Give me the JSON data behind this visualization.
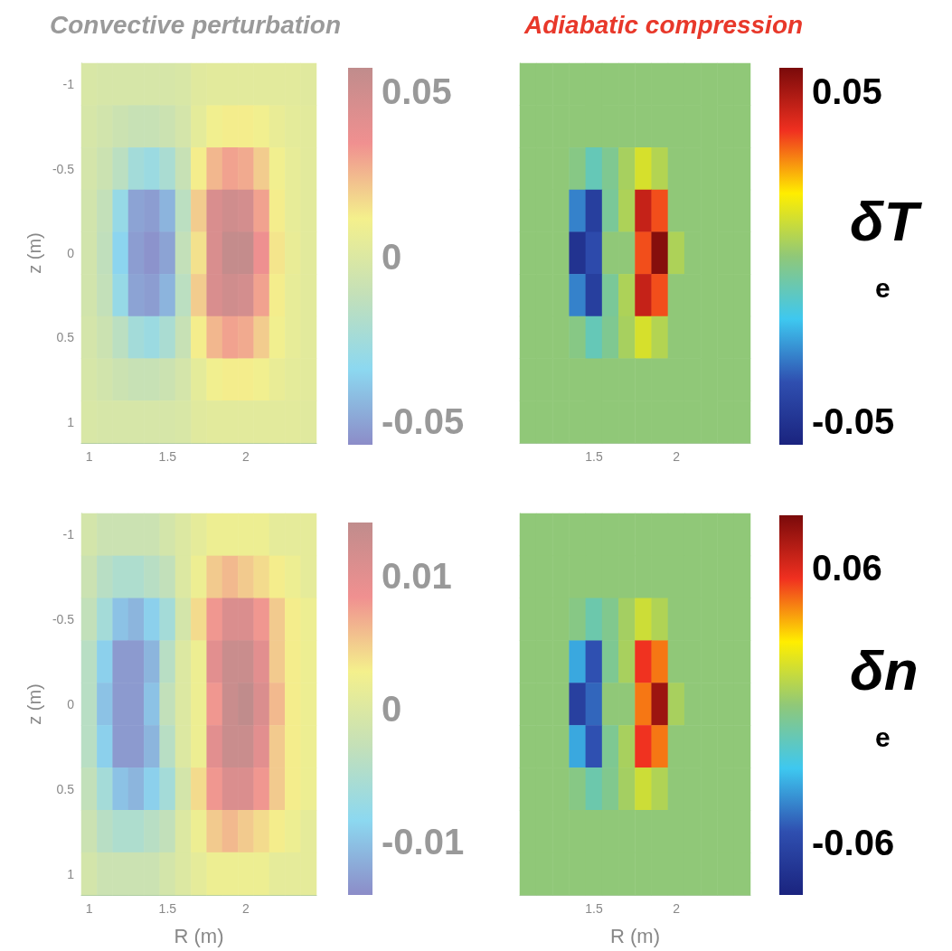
{
  "chart_data": [
    {
      "type": "heatmap",
      "title": "Convective perturbation",
      "ylabel": "z (m)",
      "categories": [
        "1",
        null,
        null,
        null,
        null,
        "1.5",
        null,
        null,
        null,
        null,
        "2",
        null,
        null,
        null,
        null
      ],
      "y_categories": [
        "-1",
        null,
        "-0.5",
        null,
        "0",
        null,
        "0.5",
        null,
        "1"
      ],
      "cells": [
        [
          -0.002,
          -0.003,
          -0.003,
          -0.003,
          -0.003,
          -0.003,
          -0.002,
          0.002,
          0.003,
          0.003,
          0.003,
          0.003,
          0.003,
          0.003,
          0.002
        ],
        [
          -0.003,
          -0.005,
          -0.008,
          -0.01,
          -0.01,
          -0.008,
          -0.004,
          0.004,
          0.01,
          0.012,
          0.012,
          0.01,
          0.006,
          0.004,
          0.003
        ],
        [
          -0.004,
          -0.008,
          -0.015,
          -0.025,
          -0.028,
          -0.022,
          -0.01,
          0.012,
          0.025,
          0.03,
          0.028,
          0.02,
          0.01,
          0.005,
          0.003
        ],
        [
          -0.005,
          -0.012,
          -0.03,
          -0.05,
          -0.052,
          -0.045,
          -0.015,
          0.02,
          0.045,
          0.05,
          0.048,
          0.03,
          0.012,
          0.005,
          0.003
        ],
        [
          -0.005,
          -0.013,
          -0.035,
          -0.052,
          -0.055,
          -0.05,
          -0.012,
          0.015,
          0.045,
          0.055,
          0.055,
          0.035,
          0.014,
          0.006,
          0.003
        ],
        [
          -0.005,
          -0.012,
          -0.03,
          -0.05,
          -0.052,
          -0.045,
          -0.015,
          0.02,
          0.045,
          0.05,
          0.048,
          0.03,
          0.012,
          0.005,
          0.003
        ],
        [
          -0.004,
          -0.008,
          -0.015,
          -0.025,
          -0.028,
          -0.022,
          -0.01,
          0.012,
          0.025,
          0.03,
          0.028,
          0.02,
          0.01,
          0.005,
          0.003
        ],
        [
          -0.003,
          -0.005,
          -0.008,
          -0.01,
          -0.01,
          -0.008,
          -0.004,
          0.004,
          0.01,
          0.012,
          0.012,
          0.01,
          0.006,
          0.004,
          0.003
        ],
        [
          -0.002,
          -0.003,
          -0.003,
          -0.003,
          -0.003,
          -0.003,
          -0.002,
          0.002,
          0.003,
          0.003,
          0.003,
          0.003,
          0.003,
          0.003,
          0.002
        ]
      ],
      "clim": [
        -0.057,
        0.057
      ],
      "cticks": [
        -0.05,
        0,
        0.05
      ],
      "colors": [
        "#8c8cc8",
        "#8cd8f0",
        "#c4e0b8",
        "#f4f08c",
        "#f09090",
        "#c08c8c"
      ]
    },
    {
      "type": "heatmap",
      "title": "Adiabatic compression",
      "clabel": "δT$_{e}$",
      "tick_labels": "x",
      "categories": [
        null,
        null,
        null,
        null,
        "1.5",
        null,
        null,
        null,
        null,
        "2",
        null,
        null,
        null,
        null
      ],
      "y_categories": [
        null,
        null,
        null,
        null,
        null,
        null,
        null,
        null,
        null
      ],
      "cells": [
        [
          0,
          0,
          0,
          0,
          0,
          0,
          0,
          0,
          0,
          0,
          0,
          0,
          0,
          0
        ],
        [
          0,
          0,
          0,
          0,
          0,
          0,
          0,
          0,
          0,
          0,
          0,
          0,
          0,
          0
        ],
        [
          0,
          0,
          0,
          -0.002,
          -0.01,
          -0.004,
          0.004,
          0.012,
          0.006,
          0,
          0,
          0,
          0,
          0
        ],
        [
          0,
          0,
          0,
          -0.03,
          -0.045,
          -0.005,
          0.005,
          0.045,
          0.035,
          0,
          0,
          0,
          0,
          0
        ],
        [
          0,
          0,
          0,
          -0.05,
          -0.04,
          0,
          0,
          0.035,
          0.055,
          0.005,
          0,
          0,
          0,
          0
        ],
        [
          0,
          0,
          0,
          -0.03,
          -0.045,
          -0.005,
          0.005,
          0.045,
          0.035,
          0,
          0,
          0,
          0,
          0
        ],
        [
          0,
          0,
          0,
          -0.002,
          -0.01,
          -0.004,
          0.004,
          0.012,
          0.006,
          0,
          0,
          0,
          0,
          0
        ],
        [
          0,
          0,
          0,
          0,
          0,
          0,
          0,
          0,
          0,
          0,
          0,
          0,
          0,
          0
        ],
        [
          0,
          0,
          0,
          0,
          0,
          0,
          0,
          0,
          0,
          0,
          0,
          0,
          0,
          0
        ]
      ],
      "clim": [
        -0.057,
        0.057
      ],
      "cticks": [
        -0.05,
        0.05
      ],
      "colors": [
        "#1a237e",
        "#2f4fb0",
        "#3ec8f0",
        "#90c878",
        "#ffee00",
        "#f03020",
        "#7a0a0a"
      ]
    },
    {
      "type": "heatmap",
      "xlabel": "R (m)",
      "ylabel": "z (m)",
      "categories": [
        "1",
        null,
        null,
        null,
        null,
        "1.5",
        null,
        null,
        null,
        null,
        "2",
        null,
        null,
        null,
        null
      ],
      "y_categories": [
        "-1",
        null,
        "-0.5",
        null,
        "0",
        null,
        "0.5",
        null,
        "1"
      ],
      "cells": [
        [
          -0.001,
          -0.002,
          -0.002,
          -0.002,
          -0.002,
          -0.001,
          0,
          0.001,
          0.002,
          0.002,
          0.002,
          0.002,
          0.001,
          0.001,
          0.001
        ],
        [
          -0.002,
          -0.004,
          -0.005,
          -0.005,
          -0.004,
          -0.003,
          0,
          0.002,
          0.005,
          0.006,
          0.005,
          0.004,
          0.003,
          0.002,
          0.001
        ],
        [
          -0.003,
          -0.006,
          -0.01,
          -0.011,
          -0.009,
          -0.006,
          -0.001,
          0.004,
          0.008,
          0.011,
          0.011,
          0.008,
          0.005,
          0.003,
          0.002
        ],
        [
          -0.004,
          -0.009,
          -0.013,
          -0.013,
          -0.011,
          -0.004,
          0,
          0.002,
          0.01,
          0.013,
          0.013,
          0.01,
          0.005,
          0.003,
          0.002
        ],
        [
          -0.004,
          -0.01,
          -0.013,
          -0.013,
          -0.01,
          -0.003,
          0,
          0.002,
          0.008,
          0.013,
          0.014,
          0.011,
          0.006,
          0.003,
          0.002
        ],
        [
          -0.004,
          -0.009,
          -0.013,
          -0.013,
          -0.011,
          -0.004,
          0,
          0.002,
          0.01,
          0.013,
          0.013,
          0.01,
          0.005,
          0.003,
          0.002
        ],
        [
          -0.003,
          -0.006,
          -0.01,
          -0.011,
          -0.009,
          -0.006,
          -0.001,
          0.004,
          0.008,
          0.011,
          0.011,
          0.008,
          0.005,
          0.003,
          0.002
        ],
        [
          -0.002,
          -0.004,
          -0.005,
          -0.005,
          -0.004,
          -0.003,
          0,
          0.002,
          0.005,
          0.006,
          0.005,
          0.004,
          0.003,
          0.002,
          0.001
        ],
        [
          -0.001,
          -0.002,
          -0.002,
          -0.002,
          -0.002,
          -0.001,
          0,
          0.001,
          0.002,
          0.002,
          0.002,
          0.002,
          0.001,
          0.001,
          0.001
        ]
      ],
      "clim": [
        -0.014,
        0.014
      ],
      "cticks": [
        -0.01,
        0,
        0.01
      ],
      "colors": [
        "#8c8cc8",
        "#8cd8f0",
        "#c4e0b8",
        "#f4f08c",
        "#f09090",
        "#c08c8c"
      ]
    },
    {
      "type": "heatmap",
      "xlabel": "R (m)",
      "clabel": "δn$_{e}$",
      "tick_labels": "x",
      "categories": [
        null,
        null,
        null,
        null,
        "1.5",
        null,
        null,
        null,
        null,
        "2",
        null,
        null,
        null,
        null
      ],
      "y_categories": [
        null,
        null,
        null,
        null,
        null,
        null,
        null,
        null,
        null
      ],
      "cells": [
        [
          0,
          0,
          0,
          0,
          0,
          0,
          0,
          0,
          0,
          0,
          0,
          0,
          0,
          0
        ],
        [
          0,
          0,
          0,
          0,
          0,
          0,
          0,
          0,
          0,
          0,
          0,
          0,
          0,
          0
        ],
        [
          0,
          0,
          0,
          -0.003,
          -0.012,
          -0.005,
          0.005,
          0.015,
          0.008,
          0,
          0,
          0,
          0,
          0
        ],
        [
          0,
          0,
          0,
          -0.035,
          -0.055,
          -0.006,
          0.006,
          0.055,
          0.045,
          0,
          0,
          0,
          0,
          0
        ],
        [
          0,
          0,
          0,
          -0.065,
          -0.05,
          0,
          0,
          0.045,
          0.075,
          0.006,
          0,
          0,
          0,
          0
        ],
        [
          0,
          0,
          0,
          -0.035,
          -0.055,
          -0.006,
          0.006,
          0.055,
          0.045,
          0,
          0,
          0,
          0,
          0
        ],
        [
          0,
          0,
          0,
          -0.003,
          -0.012,
          -0.005,
          0.005,
          0.015,
          0.008,
          0,
          0,
          0,
          0,
          0
        ],
        [
          0,
          0,
          0,
          0,
          0,
          0,
          0,
          0,
          0,
          0,
          0,
          0,
          0,
          0
        ],
        [
          0,
          0,
          0,
          0,
          0,
          0,
          0,
          0,
          0,
          0,
          0,
          0,
          0,
          0
        ]
      ],
      "clim": [
        -0.083,
        0.083
      ],
      "cticks": [
        -0.06,
        0.06
      ],
      "colors": [
        "#1a237e",
        "#2f4fb0",
        "#3ec8f0",
        "#90c878",
        "#ffee00",
        "#f03020",
        "#7a0a0a"
      ]
    }
  ]
}
